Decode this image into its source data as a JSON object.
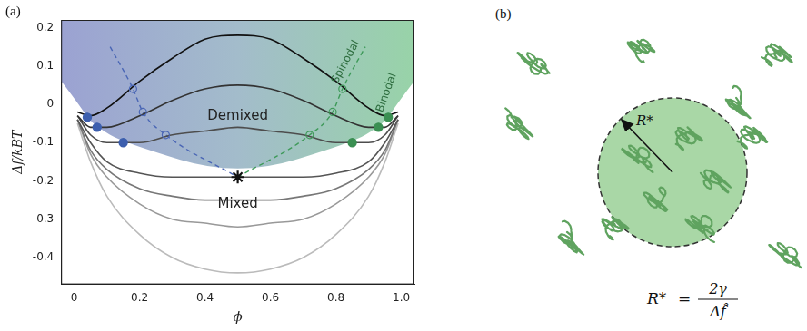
{
  "chart_data": {
    "type": "line",
    "panel_label": "(a)",
    "x_label": "ϕ",
    "y_label": "Δf/kBT",
    "xlim": [
      -0.04,
      1.04
    ],
    "ylim": [
      -0.47,
      0.22
    ],
    "xticks": [
      0,
      0.2,
      0.4,
      0.6,
      0.8,
      {
        "value": 1,
        "label": "1.0"
      }
    ],
    "yticks": [
      -0.4,
      -0.3,
      -0.2,
      -0.1,
      0,
      0.1,
      0.2
    ],
    "grid": false,
    "series": [
      {
        "x": [
          0.01,
          0.05,
          0.1,
          0.2,
          0.3,
          0.4,
          0.5,
          0.6,
          0.7,
          0.8,
          0.9,
          0.95,
          0.99
        ],
        "values": [
          -0.02,
          -0.03,
          -0.01,
          0.06,
          0.12,
          0.17,
          0.18,
          0.17,
          0.12,
          0.06,
          -0.01,
          -0.03,
          -0.02
        ],
        "color": "#111111",
        "marker": "none",
        "line_style": "solid"
      },
      {
        "x": [
          0.01,
          0.05,
          0.1,
          0.2,
          0.3,
          0.4,
          0.5,
          0.6,
          0.7,
          0.8,
          0.9,
          0.95,
          0.99
        ],
        "values": [
          -0.03,
          -0.06,
          -0.06,
          -0.03,
          0.01,
          0.04,
          0.05,
          0.04,
          0.01,
          -0.03,
          -0.06,
          -0.06,
          -0.03
        ],
        "color": "#333333",
        "marker": "none",
        "line_style": "solid"
      },
      {
        "x": [
          0.01,
          0.05,
          0.1,
          0.2,
          0.3,
          0.4,
          0.5,
          0.6,
          0.7,
          0.8,
          0.9,
          0.95,
          0.99
        ],
        "values": [
          -0.03,
          -0.08,
          -0.1,
          -0.1,
          -0.08,
          -0.07,
          -0.06,
          -0.07,
          -0.08,
          -0.1,
          -0.1,
          -0.08,
          -0.03
        ],
        "color": "#4d4d4d",
        "marker": "none",
        "line_style": "solid"
      },
      {
        "x": [
          0.01,
          0.05,
          0.1,
          0.2,
          0.3,
          0.4,
          0.5,
          0.6,
          0.7,
          0.8,
          0.9,
          0.95,
          0.99
        ],
        "values": [
          -0.04,
          -0.1,
          -0.15,
          -0.18,
          -0.19,
          -0.19,
          -0.19,
          -0.19,
          -0.19,
          -0.18,
          -0.15,
          -0.1,
          -0.04
        ],
        "color": "#555555",
        "marker": "none",
        "line_style": "solid"
      },
      {
        "x": [
          0.01,
          0.05,
          0.1,
          0.2,
          0.3,
          0.4,
          0.5,
          0.6,
          0.7,
          0.8,
          0.9,
          0.95,
          0.99
        ],
        "values": [
          -0.04,
          -0.12,
          -0.17,
          -0.22,
          -0.24,
          -0.25,
          -0.25,
          -0.25,
          -0.24,
          -0.22,
          -0.17,
          -0.12,
          -0.04
        ],
        "color": "#777777",
        "marker": "none",
        "line_style": "solid"
      },
      {
        "x": [
          0.01,
          0.05,
          0.1,
          0.2,
          0.3,
          0.4,
          0.5,
          0.6,
          0.7,
          0.8,
          0.9,
          0.95,
          0.99
        ],
        "values": [
          -0.04,
          -0.13,
          -0.19,
          -0.26,
          -0.3,
          -0.31,
          -0.32,
          -0.31,
          -0.3,
          -0.26,
          -0.19,
          -0.13,
          -0.04
        ],
        "color": "#999999",
        "marker": "none",
        "line_style": "solid"
      },
      {
        "x": [
          0.01,
          0.05,
          0.1,
          0.2,
          0.3,
          0.4,
          0.5,
          0.6,
          0.7,
          0.8,
          0.9,
          0.95,
          0.99
        ],
        "values": [
          -0.05,
          -0.15,
          -0.24,
          -0.34,
          -0.4,
          -0.43,
          -0.44,
          -0.43,
          -0.4,
          -0.34,
          -0.24,
          -0.15,
          -0.05
        ],
        "color": "#bbbbbb",
        "marker": "none",
        "line_style": "solid"
      },
      {
        "x": [
          0.11,
          0.18,
          0.21,
          0.28,
          0.5
        ],
        "values": [
          0.15,
          0.04,
          -0.02,
          -0.08,
          -0.19
        ],
        "color": "#4a66b5",
        "marker": "none",
        "line_style": "dashed"
      },
      {
        "x": [
          0.5,
          0.72,
          0.79,
          0.82,
          0.89
        ],
        "values": [
          -0.19,
          -0.08,
          -0.02,
          0.04,
          0.15
        ],
        "color": "#3f9a5a",
        "marker": "none",
        "line_style": "dashed"
      },
      {
        "x": [
          0.18,
          0.21,
          0.28
        ],
        "values": [
          0.04,
          -0.02,
          -0.08
        ],
        "color": "#4a66b5",
        "marker": "open_circle",
        "line_style": "none"
      },
      {
        "x": [
          0.72,
          0.79,
          0.82
        ],
        "values": [
          -0.08,
          -0.02,
          0.04
        ],
        "color": "#3f9a5a",
        "marker": "open_circle",
        "line_style": "none"
      },
      {
        "x": [
          0.04,
          0.07,
          0.15
        ],
        "values": [
          -0.034,
          -0.06,
          -0.1
        ],
        "color": "#3d5fae",
        "marker": "circle",
        "line_style": "none"
      },
      {
        "x": [
          0.85,
          0.93,
          0.96
        ],
        "values": [
          -0.1,
          -0.06,
          -0.034
        ],
        "color": "#3a8f52",
        "marker": "circle",
        "line_style": "none"
      },
      {
        "x": [
          0.5
        ],
        "values": [
          -0.19
        ],
        "color": "#111111",
        "marker": "star",
        "line_style": "none"
      }
    ],
    "annotations": [
      {
        "text": "Demixed",
        "x": 0.5,
        "y": -0.03
      },
      {
        "text": "Mixed",
        "x": 0.5,
        "y": -0.26
      },
      {
        "text": "Spinodal",
        "x": 0.83,
        "y": 0.11
      },
      {
        "text": "Binodal",
        "x": 0.955,
        "y": 0.03
      }
    ]
  },
  "diagram": {
    "panel_label": "(b)",
    "radius_label": "R*",
    "equation": {
      "lhs": "R*",
      "relation": "=",
      "numerator": "2γ",
      "denominator": "Δf̂"
    }
  }
}
